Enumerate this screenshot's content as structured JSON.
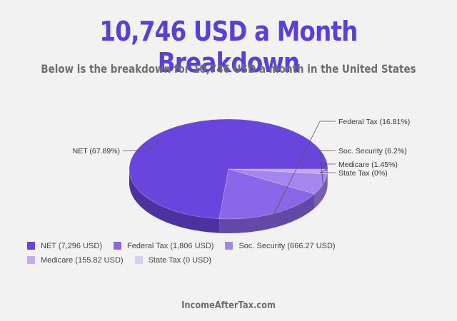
{
  "header": {
    "title": "10,746 USD a Month Breakdown",
    "subtitle": "Below is the breakdown for 10,746 USD a month in the United States"
  },
  "chart_data": {
    "type": "pie",
    "title": "10,746 USD a Month Breakdown",
    "slices": [
      {
        "name": "NET",
        "percent": 67.89,
        "amount": "7,296 USD",
        "label": "NET (67.89%)",
        "legend": "NET (7,296 USD)",
        "color": "#6a45dd"
      },
      {
        "name": "Federal Tax",
        "percent": 16.81,
        "amount": "1,806 USD",
        "label": "Federal Tax (16.81%)",
        "legend": "Federal Tax (1,806 USD)",
        "color": "#8a66e8"
      },
      {
        "name": "Soc. Security",
        "percent": 6.2,
        "amount": "666.27 USD",
        "label": "Soc. Security (6.2%)",
        "legend": "Soc. Security (666.27 USD)",
        "color": "#a585ee"
      },
      {
        "name": "Medicare",
        "percent": 1.45,
        "amount": "155.82 USD",
        "label": "Medicare (1.45%)",
        "legend": "Medicare (155.82 USD)",
        "color": "#c3aaf3"
      },
      {
        "name": "State Tax",
        "percent": 0,
        "amount": "0 USD",
        "label": "State Tax (0%)",
        "legend": "State Tax (0 USD)",
        "color": "#dccbf7"
      }
    ]
  },
  "footer": {
    "site": "IncomeAfterTax.com"
  }
}
